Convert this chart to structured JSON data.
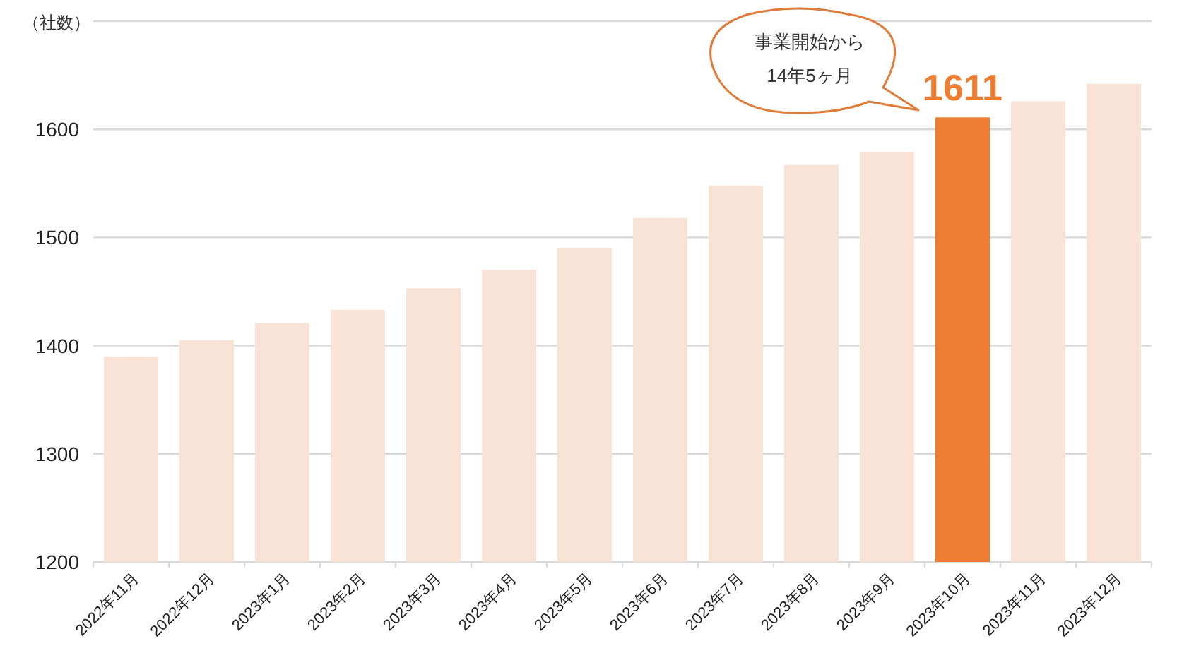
{
  "chart_data": {
    "type": "bar",
    "ylabel": "（社数）",
    "categories": [
      "2022年11月",
      "2022年12月",
      "2023年1月",
      "2023年2月",
      "2023年3月",
      "2023年4月",
      "2023年5月",
      "2023年6月",
      "2023年7月",
      "2023年8月",
      "2023年9月",
      "2023年10月",
      "2023年11月",
      "2023年12月"
    ],
    "values": [
      1390,
      1405,
      1421,
      1433,
      1453,
      1470,
      1490,
      1518,
      1548,
      1567,
      1579,
      1611,
      1626,
      1642
    ],
    "colors": [
      "#f9e2d6",
      "#f9e2d6",
      "#f9e2d6",
      "#f9e2d6",
      "#f9e2d6",
      "#f9e2d6",
      "#f9e2d6",
      "#f9e2d6",
      "#f9e2d6",
      "#f9e2d6",
      "#f9e2d6",
      "#ed7d31",
      "#f9e2d6",
      "#f9e2d6"
    ],
    "value_labels": [
      null,
      null,
      null,
      null,
      null,
      null,
      null,
      null,
      null,
      null,
      null,
      "1611",
      null,
      null
    ],
    "ylim": [
      1200,
      1700
    ],
    "yticks": [
      1200,
      1300,
      1400,
      1500,
      1600,
      {
        "value": 1700,
        "label": null
      }
    ],
    "grid": "y",
    "annotations": [
      "事業開始から\n14年5ヶ月"
    ]
  }
}
